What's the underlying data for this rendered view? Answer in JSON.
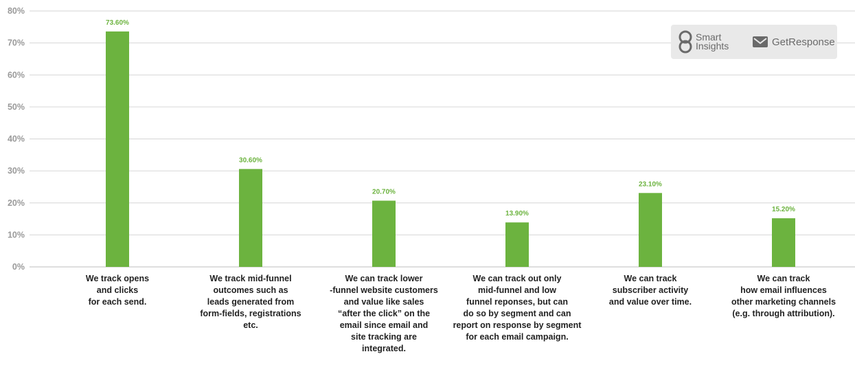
{
  "chart_data": {
    "type": "bar",
    "title": "",
    "xlabel": "",
    "ylabel": "",
    "ylim": [
      0,
      80
    ],
    "y_ticks": [
      0,
      10,
      20,
      30,
      40,
      50,
      60,
      70,
      80
    ],
    "y_tick_labels": [
      "0%",
      "10%",
      "20%",
      "30%",
      "40%",
      "50%",
      "60%",
      "70%",
      "80%"
    ],
    "grid": true,
    "bar_color": "#6cb33f",
    "categories": [
      "We track opens\nand clicks\nfor each send.",
      "We track mid-funnel\noutcomes such as\nleads generated from\nform-fields, registrations\netc.",
      "We can track lower\n-funnel website customers\nand value like sales\n“after the click” on the\nemail since email and\nsite tracking are\nintegrated.",
      "We can track out only\nmid-funnel and low\nfunnel reponses, but can\ndo so by segment and can\nreport on response by segment\nfor each email campaign.",
      "We can track\nsubscriber activity\nand value over time.",
      "We can track\nhow email influences\nother marketing channels\n(e.g. through attribution)."
    ],
    "values": [
      73.6,
      30.6,
      20.7,
      13.9,
      23.1,
      15.2
    ],
    "data_labels": [
      "73.60%",
      "30.60%",
      "20.70%",
      "13.90%",
      "23.10%",
      "15.20%"
    ]
  },
  "logos": {
    "smart_insights": "Smart\nInsights",
    "getresponse": "GetResponse"
  }
}
